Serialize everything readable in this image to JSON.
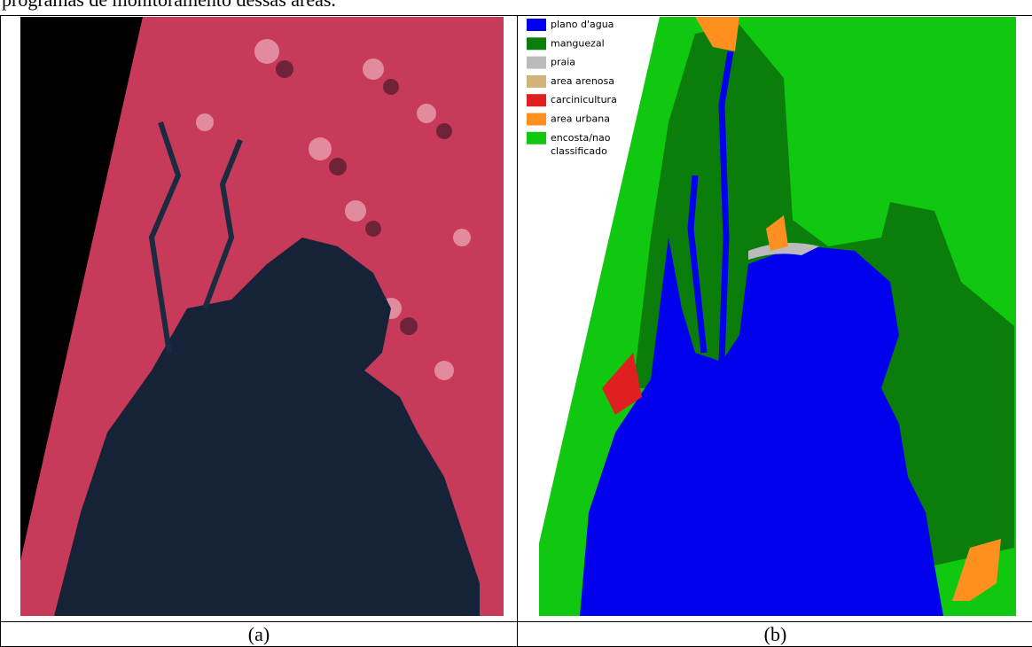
{
  "header": {
    "text": "programas de monitoramento dessas áreas."
  },
  "panels": [
    {
      "caption": "(a)"
    },
    {
      "caption": "(b)",
      "legend": [
        {
          "lines": [
            "plano d'agua"
          ],
          "color": "#0000ee"
        },
        {
          "lines": [
            "manguezal"
          ],
          "color": "#0a7d0a"
        },
        {
          "lines": [
            "praia"
          ],
          "color": "#bbbbbb"
        },
        {
          "lines": [
            "area arenosa"
          ],
          "color": "#d2b47a"
        },
        {
          "lines": [
            "carcinicultura"
          ],
          "color": "#e02020"
        },
        {
          "lines": [
            "area urbana"
          ],
          "color": "#ff9020"
        },
        {
          "lines": [
            "encosta/nao",
            "classificado"
          ],
          "color": "#11c811"
        }
      ]
    }
  ]
}
